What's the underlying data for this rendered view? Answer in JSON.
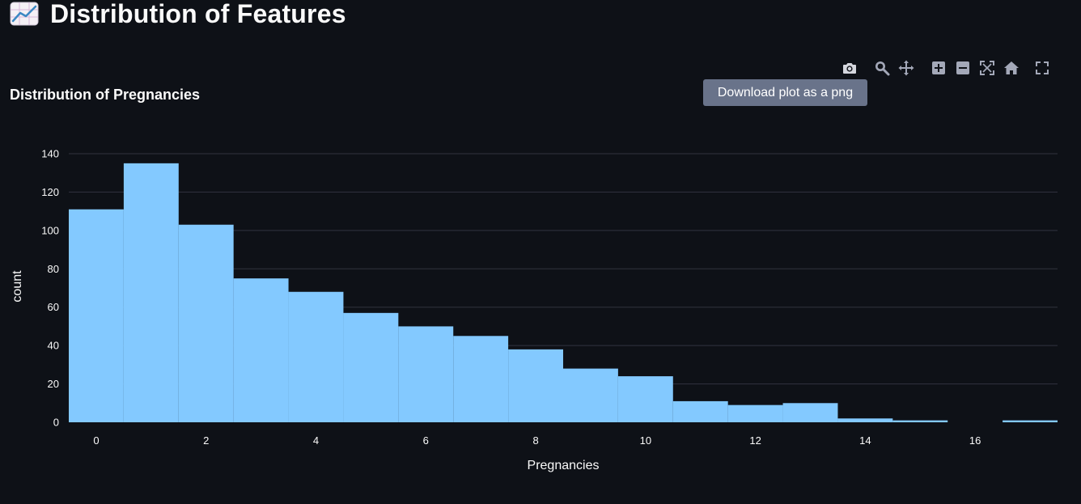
{
  "page": {
    "heading": "Distribution of Features",
    "heading_icon": "chart-increasing-icon"
  },
  "modebar": {
    "buttons": [
      {
        "name": "camera-icon",
        "label": "Download plot as a png"
      },
      {
        "name": "zoom-icon",
        "label": "Zoom"
      },
      {
        "name": "pan-icon",
        "label": "Pan"
      },
      {
        "name": "zoom-in-icon",
        "label": "Zoom in"
      },
      {
        "name": "zoom-out-icon",
        "label": "Zoom out"
      },
      {
        "name": "autoscale-icon",
        "label": "Autoscale"
      },
      {
        "name": "home-icon",
        "label": "Reset axes"
      },
      {
        "name": "fullscreen-icon",
        "label": "Fullscreen"
      }
    ],
    "tooltip": "Download plot as a png"
  },
  "colors": {
    "background": "#0e1117",
    "bar": "#83c9ff",
    "grid": "#31333f",
    "text": "#fafafa",
    "tooltip_bg": "#69738a",
    "modebar_icon": "#a3a8b8",
    "modebar_icon_active": "#d5d7de"
  },
  "chart_data": {
    "type": "bar",
    "title": "Distribution of Pregnancies",
    "xlabel": "Pregnancies",
    "ylabel": "count",
    "x": [
      0,
      1,
      2,
      3,
      4,
      5,
      6,
      7,
      8,
      9,
      10,
      11,
      12,
      13,
      14,
      15,
      16,
      17
    ],
    "values": [
      111,
      135,
      103,
      75,
      68,
      57,
      50,
      45,
      38,
      28,
      24,
      11,
      9,
      10,
      2,
      1,
      0,
      1
    ],
    "xticks": [
      0,
      2,
      4,
      6,
      8,
      10,
      12,
      14,
      16
    ],
    "yticks": [
      0,
      20,
      40,
      60,
      80,
      100,
      120,
      140
    ],
    "xlim": [
      -0.5,
      17.5
    ],
    "ylim": [
      0,
      140
    ],
    "grid": true
  }
}
